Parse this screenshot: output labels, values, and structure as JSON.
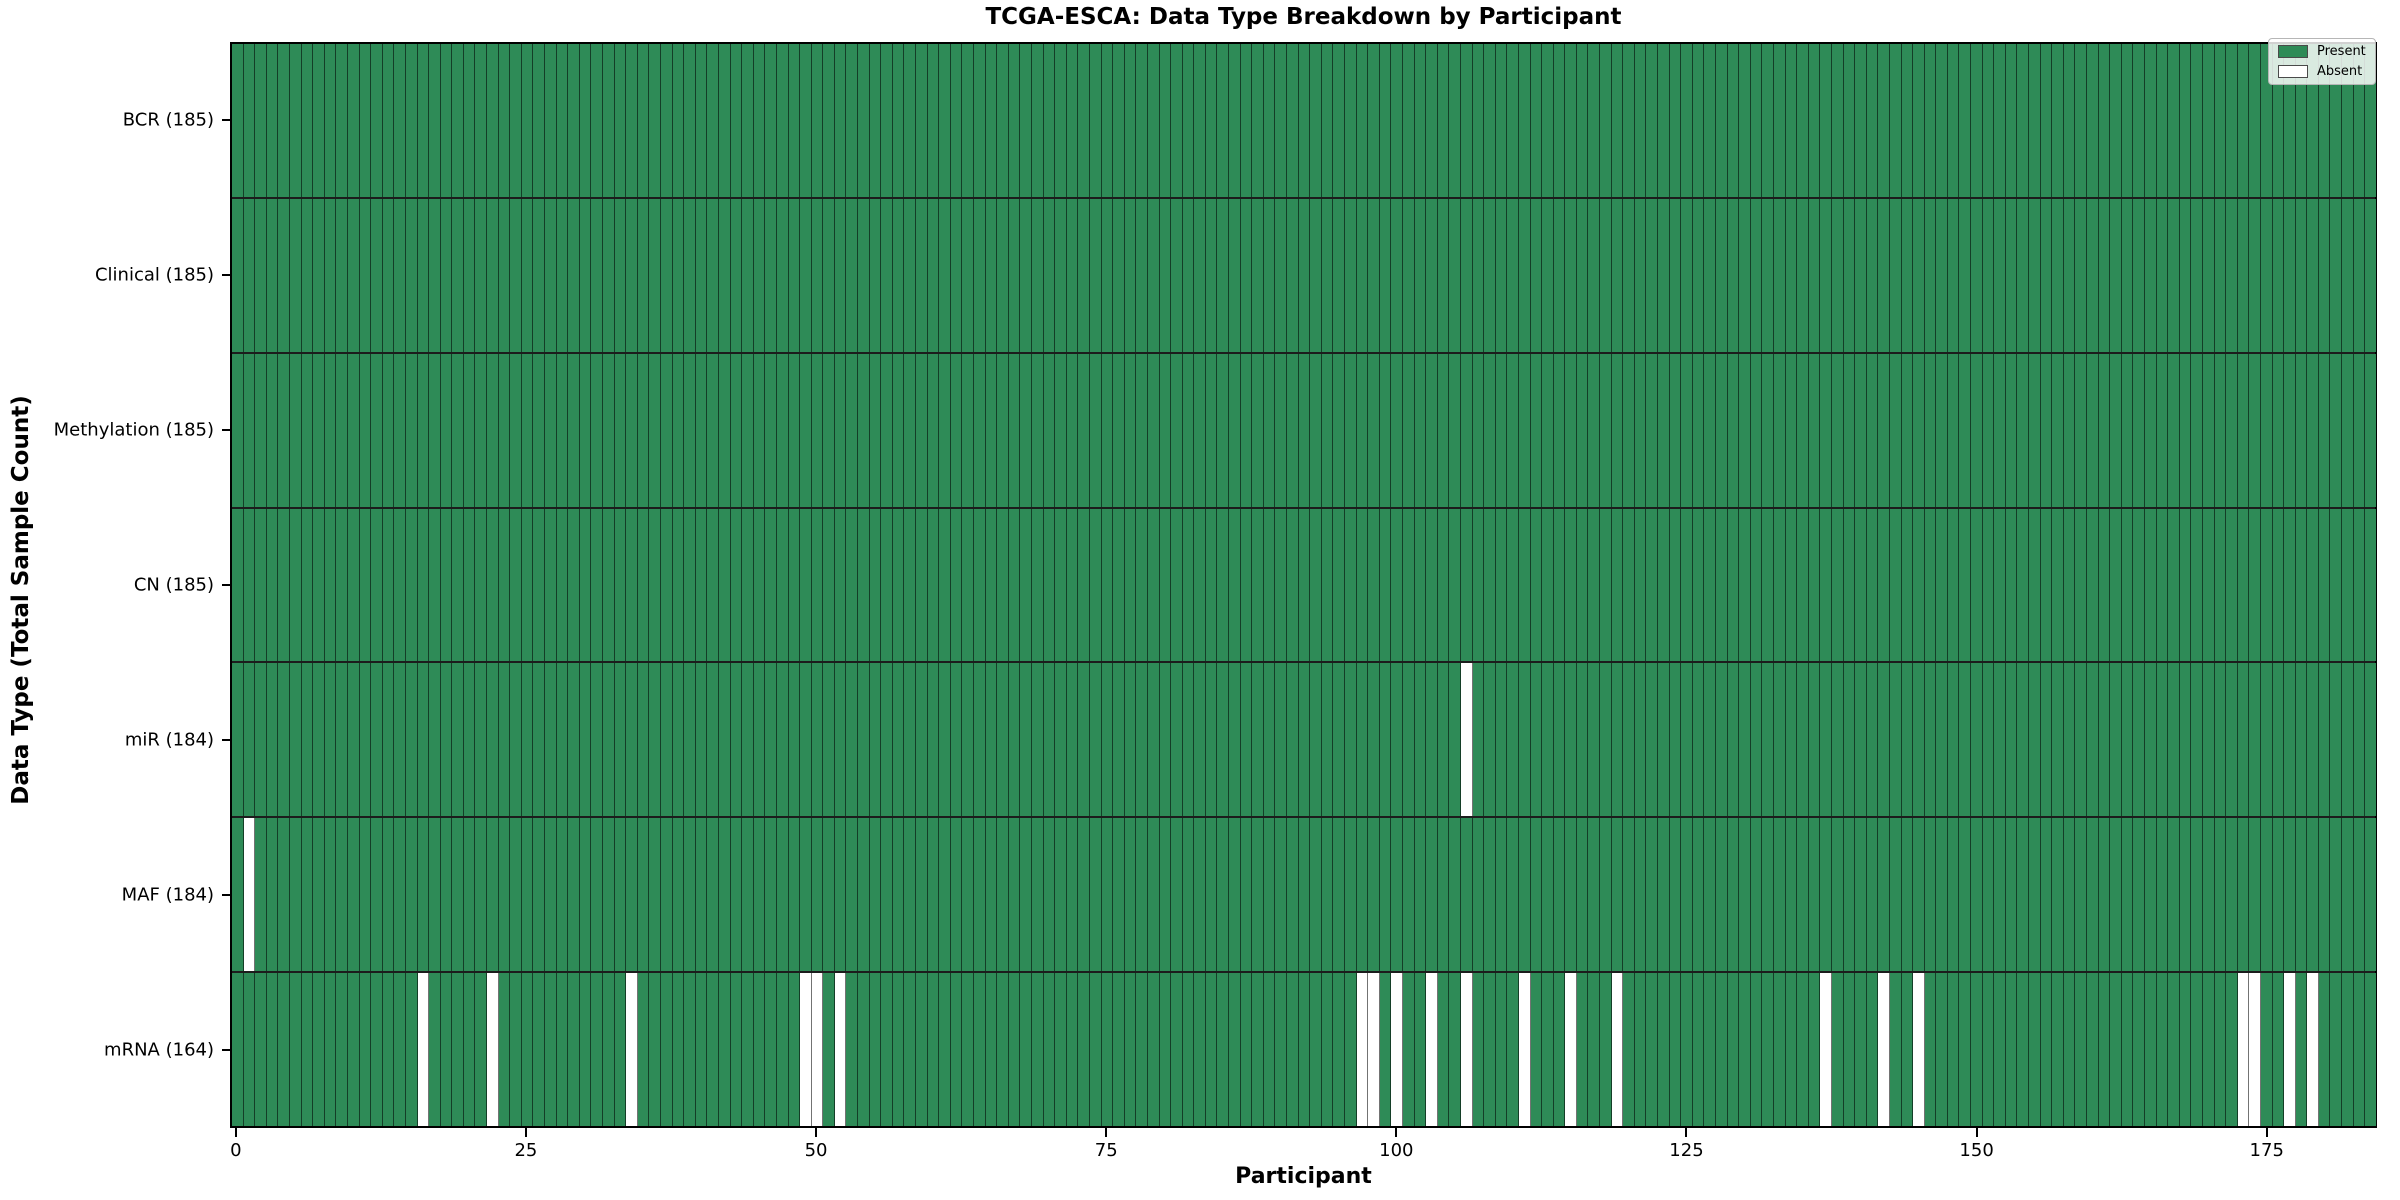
{
  "title": "TCGA-ESCA: Data Type Breakdown by Participant",
  "axes": {
    "x_label": "Participant",
    "y_label": "Data Type (Total Sample Count)"
  },
  "legend": {
    "items": [
      {
        "label": "Present",
        "color": "#2e8b57"
      },
      {
        "label": "Absent",
        "color": "#ffffff"
      }
    ]
  },
  "colors": {
    "present": "#2e8b57",
    "absent": "#ffffff",
    "cell_edge": "rgba(0,0,0,0.55)",
    "row_divider": "#1c1c1c",
    "plot_border": "#000000"
  },
  "chart_data": {
    "type": "heatmap",
    "title": "TCGA-ESCA: Data Type Breakdown by Participant",
    "xlabel": "Participant",
    "ylabel": "Data Type (Total Sample Count)",
    "n_participants": 185,
    "x_ticks": [
      0,
      25,
      50,
      75,
      100,
      125,
      150,
      175
    ],
    "legend_position": "upper right",
    "cell_states": {
      "present": 1,
      "absent": 0
    },
    "rows": [
      {
        "name": "BCR",
        "label": "BCR (185)",
        "present_count": 185,
        "absent_participants": []
      },
      {
        "name": "Clinical",
        "label": "Clinical (185)",
        "present_count": 185,
        "absent_participants": []
      },
      {
        "name": "Methylation",
        "label": "Methylation (185)",
        "present_count": 185,
        "absent_participants": []
      },
      {
        "name": "CN",
        "label": "CN (185)",
        "present_count": 185,
        "absent_participants": []
      },
      {
        "name": "miR",
        "label": "miR (184)",
        "present_count": 184,
        "absent_participants": [
          106
        ]
      },
      {
        "name": "MAF",
        "label": "MAF (184)",
        "present_count": 184,
        "absent_participants": [
          1
        ]
      },
      {
        "name": "mRNA",
        "label": "mRNA (164)",
        "present_count": 164,
        "absent_participants": [
          16,
          22,
          34,
          49,
          50,
          52,
          97,
          98,
          100,
          103,
          106,
          111,
          115,
          119,
          137,
          142,
          145,
          173,
          174,
          177,
          179
        ]
      }
    ]
  }
}
